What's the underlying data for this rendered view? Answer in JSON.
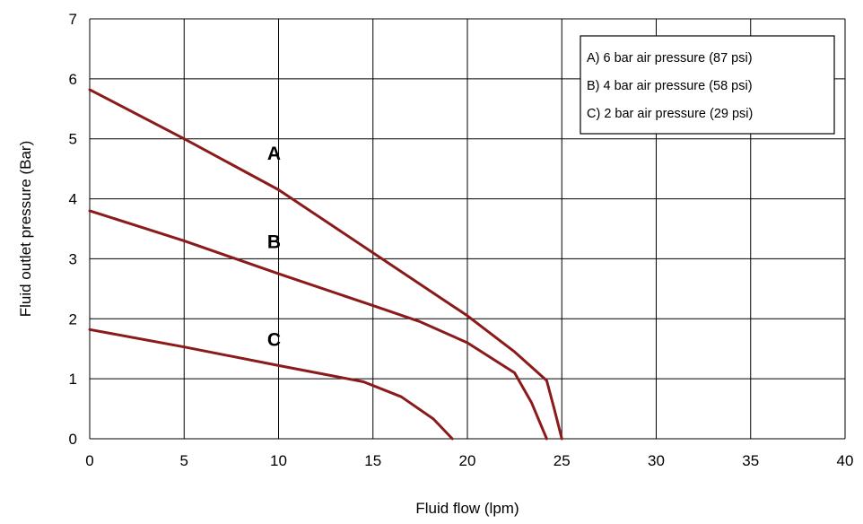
{
  "chart_data": {
    "type": "line",
    "xlabel": "Fluid flow (lpm)",
    "ylabel": "Fluid outlet pressure (Bar)",
    "xlim": [
      0,
      40
    ],
    "ylim": [
      0,
      7
    ],
    "xticks": [
      0,
      5,
      10,
      15,
      20,
      25,
      30,
      35,
      40
    ],
    "yticks": [
      0,
      1,
      2,
      3,
      4,
      5,
      6,
      7
    ],
    "grid": true,
    "legend_position": "top-right",
    "legend": [
      "A) 6 bar air pressure (87 psi)",
      "B) 4 bar air pressure (58 psi)",
      "C) 2 bar air pressure (29 psi)"
    ],
    "line_color": "#8b1a1a",
    "series": [
      {
        "name": "A",
        "points": [
          [
            0,
            5.82
          ],
          [
            5,
            5.0
          ],
          [
            10,
            4.15
          ],
          [
            15,
            3.1
          ],
          [
            20,
            2.05
          ],
          [
            22.5,
            1.45
          ],
          [
            24.2,
            0.97
          ],
          [
            24.6,
            0.5
          ],
          [
            25,
            0
          ]
        ]
      },
      {
        "name": "B",
        "points": [
          [
            0,
            3.8
          ],
          [
            5,
            3.3
          ],
          [
            10,
            2.75
          ],
          [
            15,
            2.22
          ],
          [
            17.5,
            1.95
          ],
          [
            20,
            1.6
          ],
          [
            22.5,
            1.1
          ],
          [
            23.4,
            0.6
          ],
          [
            24.2,
            0
          ]
        ]
      },
      {
        "name": "C",
        "points": [
          [
            0,
            1.82
          ],
          [
            5,
            1.53
          ],
          [
            10,
            1.22
          ],
          [
            14.5,
            0.95
          ],
          [
            16.5,
            0.7
          ],
          [
            18.2,
            0.33
          ],
          [
            19.2,
            0
          ]
        ]
      }
    ],
    "annotations": [
      {
        "text": "A",
        "x": 9.4,
        "y": 4.65
      },
      {
        "text": "B",
        "x": 9.4,
        "y": 3.18
      },
      {
        "text": "C",
        "x": 9.4,
        "y": 1.55
      }
    ]
  }
}
